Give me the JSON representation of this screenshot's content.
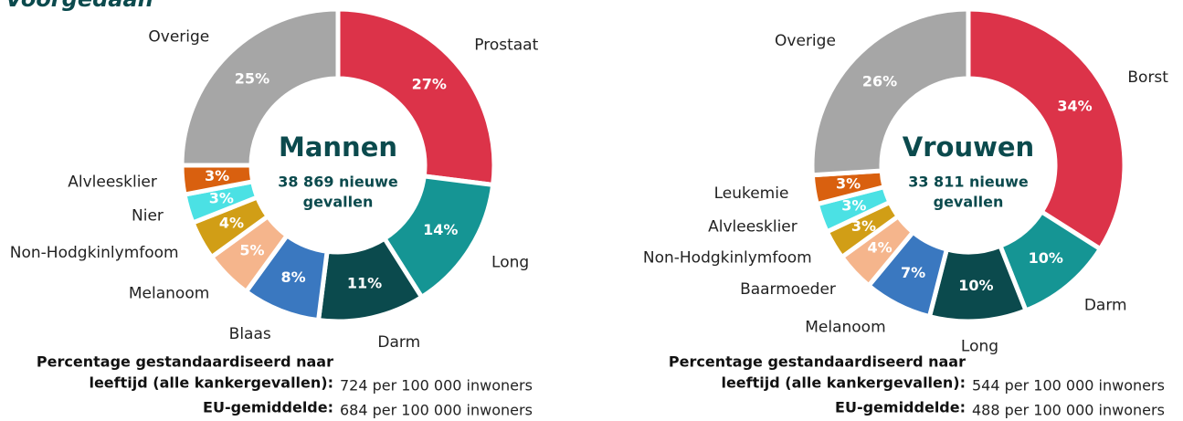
{
  "heading": "Voorgedaan",
  "chart_data": [
    {
      "type": "pie",
      "center_title": "Mannen",
      "center_subtitle": [
        "38 869 nieuwe",
        "gevallen"
      ],
      "categories": [
        "Prostaat",
        "Long",
        "Darm",
        "Blaas",
        "Melanoom",
        "Non-Hodgkinlymfoom",
        "Nier",
        "Alvleesklier",
        "Overige"
      ],
      "values": [
        27,
        14,
        11,
        8,
        5,
        4,
        3,
        3,
        25
      ],
      "value_labels": [
        "27%",
        "14%",
        "11%",
        "8%",
        "5%",
        "4%",
        "3%",
        "3%",
        "25%"
      ],
      "colors": [
        "#dc3349",
        "#159594",
        "#0b4a4d",
        "#3a78c0",
        "#f5b58c",
        "#d19e16",
        "#4be1e4",
        "#d9600f",
        "#a6a6a6"
      ],
      "stats": [
        {
          "label": [
            "Percentage gestandaardiseerd naar",
            "leeftijd (alle kankergevallen):"
          ],
          "value": "724 per 100 000 inwoners"
        },
        {
          "label": [
            "EU-gemiddelde:"
          ],
          "value": "684 per 100 000 inwoners"
        }
      ]
    },
    {
      "type": "pie",
      "center_title": "Vrouwen",
      "center_subtitle": [
        "33 811 nieuwe",
        "gevallen"
      ],
      "categories": [
        "Borst",
        "Darm",
        "Long",
        "Melanoom",
        "Baarmoeder",
        "Non-Hodgkinlymfoom",
        "Alvleesklier",
        "Leukemie",
        "Overige"
      ],
      "values": [
        34,
        10,
        10,
        7,
        4,
        3,
        3,
        3,
        26
      ],
      "value_labels": [
        "34%",
        "10%",
        "10%",
        "7%",
        "4%",
        "3%",
        "3%",
        "3%",
        "26%"
      ],
      "colors": [
        "#dc3349",
        "#159594",
        "#0b4a4d",
        "#3a78c0",
        "#f5b58c",
        "#d19e16",
        "#4be1e4",
        "#d9600f",
        "#a6a6a6"
      ],
      "stats": [
        {
          "label": [
            "Percentage gestandaardiseerd naar",
            "leeftijd (alle kankergevallen):"
          ],
          "value": "544 per 100 000 inwoners"
        },
        {
          "label": [
            "EU-gemiddelde:"
          ],
          "value": "488 per 100 000 inwoners"
        }
      ]
    }
  ]
}
